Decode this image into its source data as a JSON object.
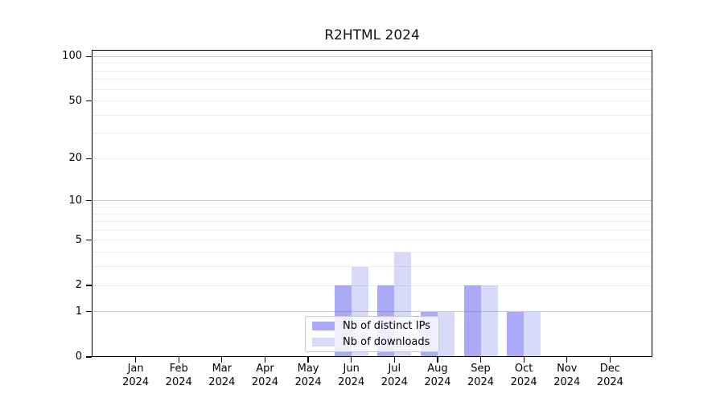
{
  "title": "R2HTML 2024",
  "chart_data": {
    "type": "bar",
    "title": "R2HTML 2024",
    "categories": [
      "Jan",
      "Feb",
      "Mar",
      "Apr",
      "May",
      "Jun",
      "Jul",
      "Aug",
      "Sep",
      "Oct",
      "Nov",
      "Dec"
    ],
    "x_year": "2024",
    "series": [
      {
        "name": "Nb of distinct IPs",
        "values": [
          0,
          0,
          0,
          0,
          0,
          2,
          2,
          1,
          2,
          1,
          0,
          0
        ],
        "color": "rgba(100,100,240,0.55)"
      },
      {
        "name": "Nb of downloads",
        "values": [
          0,
          0,
          0,
          0,
          0,
          3,
          4,
          1,
          2,
          1,
          0,
          0
        ],
        "color": "rgba(125,125,235,0.30)"
      }
    ],
    "yscale": "log1p",
    "ylim": [
      0,
      110
    ],
    "yticks": [
      0,
      1,
      2,
      5,
      10,
      20,
      50,
      100
    ],
    "major_gridlines": [
      1,
      10,
      100
    ],
    "minor_gridlines": [
      2,
      3,
      4,
      5,
      6,
      7,
      8,
      9,
      20,
      30,
      40,
      50,
      60,
      70,
      80,
      90
    ],
    "grid_major_color": "#c9c9c9",
    "grid_minor_color": "#ececec",
    "legend_position": "lower center-left inside plot",
    "grid": "on"
  },
  "legend": {
    "items": [
      {
        "label": "Nb of distinct IPs"
      },
      {
        "label": "Nb of downloads"
      }
    ]
  }
}
